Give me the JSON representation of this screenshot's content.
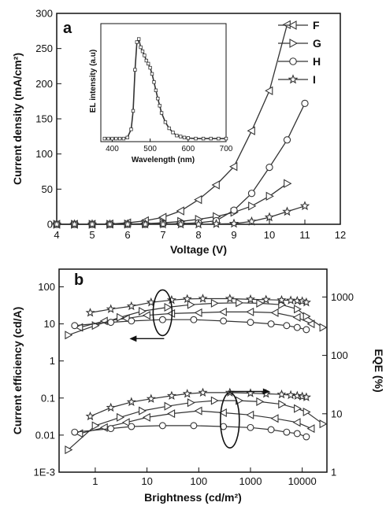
{
  "chart_data": [
    {
      "panel": "a",
      "type": "line",
      "xlabel": "Voltage (V)",
      "ylabel": "Current density (mA/cm²)",
      "xlim": [
        4,
        12
      ],
      "ylim": [
        0,
        300
      ],
      "xticks": [
        "4",
        "5",
        "6",
        "7",
        "8",
        "9",
        "10",
        "11",
        "12"
      ],
      "yticks": [
        "0",
        "50",
        "100",
        "150",
        "200",
        "250",
        "300"
      ],
      "legend_position": "top-right",
      "series": [
        {
          "name": "F",
          "marker": "triangle-left",
          "x": [
            4,
            4.5,
            5,
            5.5,
            6,
            6.5,
            7,
            7.5,
            8,
            8.5,
            9,
            9.5,
            10,
            10.5
          ],
          "y": [
            0,
            0,
            0,
            0.5,
            2,
            5,
            10,
            19,
            35,
            56,
            82,
            133,
            190,
            284
          ]
        },
        {
          "name": "G",
          "marker": "triangle-right",
          "x": [
            4,
            4.5,
            5,
            5.5,
            6,
            6.5,
            7,
            7.5,
            8,
            8.5,
            9,
            9.5,
            10,
            10.5
          ],
          "y": [
            0,
            0,
            0,
            0,
            0.5,
            1,
            2,
            4,
            7,
            11,
            17,
            26,
            40,
            58
          ]
        },
        {
          "name": "H",
          "marker": "circle",
          "x": [
            4,
            4.5,
            5,
            5.5,
            6,
            6.5,
            7,
            7.5,
            8,
            8.5,
            9,
            9.5,
            10,
            10.5,
            11
          ],
          "y": [
            0,
            0,
            0,
            0,
            0,
            0,
            0.5,
            1,
            2,
            5,
            20,
            44,
            81,
            120,
            172
          ]
        },
        {
          "name": "I",
          "marker": "star",
          "x": [
            4,
            4.5,
            5,
            5.5,
            6,
            6.5,
            7,
            7.5,
            8,
            8.5,
            9,
            9.5,
            10,
            10.5,
            11
          ],
          "y": [
            0,
            0,
            0,
            0,
            0,
            0,
            0,
            0,
            0,
            0.5,
            1,
            4,
            10,
            18,
            26
          ]
        }
      ]
    },
    {
      "panel": "a-inset",
      "type": "line",
      "xlabel": "Wavelength (nm)",
      "ylabel": "EL intensity (a.u)",
      "xlim": [
        370,
        700
      ],
      "ylim": [
        0,
        1.15
      ],
      "xticks": [
        "400",
        "500",
        "600",
        "700"
      ],
      "series": [
        {
          "x": [
            380,
            390,
            400,
            410,
            420,
            430,
            440,
            450,
            455,
            460,
            465,
            470,
            475,
            480,
            485,
            490,
            495,
            500,
            505,
            510,
            515,
            520,
            525,
            530,
            540,
            550,
            560,
            570,
            580,
            590,
            600,
            620,
            640,
            660,
            680,
            700
          ],
          "y": [
            0.03,
            0.03,
            0.03,
            0.03,
            0.03,
            0.03,
            0.04,
            0.12,
            0.3,
            0.7,
            0.97,
            1.0,
            0.92,
            0.88,
            0.84,
            0.79,
            0.76,
            0.72,
            0.66,
            0.58,
            0.5,
            0.42,
            0.35,
            0.28,
            0.19,
            0.13,
            0.09,
            0.06,
            0.05,
            0.04,
            0.035,
            0.03,
            0.03,
            0.03,
            0.03,
            0.03
          ]
        }
      ]
    },
    {
      "panel": "b",
      "type": "scatter",
      "xlabel": "Brightness (cd/m²)",
      "ylabel": "Current efficiency (cd/A)",
      "ylabel_right": "EQE (%)",
      "xscale": "log",
      "yscale": "log",
      "xlim": [
        0.2,
        30000
      ],
      "ylim": [
        0.001,
        300
      ],
      "right_ylim": [
        1,
        3000
      ],
      "xticks": [
        "1",
        "10",
        "100",
        "1000",
        "10000"
      ],
      "yticks": [
        "1E-3",
        "0.01",
        "0.1",
        "1",
        "10",
        "100"
      ],
      "right_yticks": [
        "1",
        "10",
        "100",
        "1000"
      ],
      "series": [
        {
          "name": "F",
          "marker": "triangle-left",
          "quantity": "current efficiency",
          "x": [
            0.5,
            1.5,
            4,
            10,
            30,
            100,
            300,
            1000,
            3000,
            8000,
            15000
          ],
          "y": [
            8,
            12,
            14,
            17,
            19,
            20,
            21,
            21,
            20,
            15,
            10
          ]
        },
        {
          "name": "G",
          "marker": "triangle-right",
          "quantity": "current efficiency",
          "x": [
            0.3,
            1,
            3,
            8,
            25,
            70,
            200,
            600,
            1500,
            4000,
            8000,
            12000,
            25000
          ],
          "y": [
            5,
            9,
            15,
            22,
            28,
            33,
            36,
            37,
            36,
            33,
            25,
            16,
            8
          ]
        },
        {
          "name": "H",
          "marker": "circle",
          "quantity": "current efficiency",
          "x": [
            0.4,
            2,
            5,
            20,
            80,
            300,
            1000,
            2500,
            5000,
            8000,
            12000
          ],
          "y": [
            9,
            11,
            12,
            13,
            13,
            12,
            11,
            10,
            9,
            8,
            7
          ]
        },
        {
          "name": "I",
          "marker": "star",
          "quantity": "current efficiency",
          "x": [
            0.8,
            2,
            5,
            12,
            30,
            60,
            120,
            400,
            1000,
            2000,
            4000,
            6000,
            8000,
            10000,
            12000
          ],
          "y": [
            20,
            25,
            30,
            38,
            44,
            47,
            48,
            48,
            46,
            45,
            44,
            43,
            42,
            41,
            38
          ]
        },
        {
          "name": "F",
          "marker": "triangle-left",
          "quantity": "EQE",
          "x": [
            0.5,
            1.5,
            4,
            10,
            30,
            100,
            300,
            1000,
            3000,
            8000,
            15000
          ],
          "y": [
            0.011,
            0.016,
            0.022,
            0.03,
            0.038,
            0.045,
            0.04,
            0.035,
            0.028,
            0.022,
            0.015
          ]
        },
        {
          "name": "G",
          "marker": "triangle-right",
          "quantity": "EQE",
          "x": [
            0.3,
            1,
            3,
            8,
            25,
            70,
            200,
            600,
            1500,
            4000,
            8000,
            12000,
            25000
          ],
          "y": [
            0.004,
            0.018,
            0.03,
            0.045,
            0.06,
            0.075,
            0.085,
            0.085,
            0.08,
            0.068,
            0.052,
            0.042,
            0.02
          ]
        },
        {
          "name": "H",
          "marker": "circle",
          "quantity": "EQE",
          "x": [
            0.4,
            2,
            5,
            20,
            80,
            300,
            1000,
            2500,
            5000,
            8000,
            12000
          ],
          "y": [
            0.012,
            0.015,
            0.017,
            0.018,
            0.018,
            0.017,
            0.016,
            0.014,
            0.012,
            0.011,
            0.009
          ]
        },
        {
          "name": "I",
          "marker": "star",
          "quantity": "EQE",
          "x": [
            0.8,
            2,
            5,
            12,
            30,
            60,
            120,
            400,
            1000,
            2000,
            4000,
            6000,
            8000,
            10000,
            12000
          ],
          "y": [
            0.032,
            0.055,
            0.078,
            0.095,
            0.115,
            0.13,
            0.14,
            0.14,
            0.135,
            0.13,
            0.125,
            0.12,
            0.115,
            0.11,
            0.105
          ]
        }
      ],
      "annotations": [
        {
          "type": "ellipse",
          "group": "current efficiency",
          "arrow_direction": "left"
        },
        {
          "type": "ellipse",
          "group": "EQE",
          "arrow_direction": "right"
        }
      ]
    }
  ],
  "panel_labels": {
    "a": "a",
    "b": "b"
  },
  "colors": {
    "line": "#333333",
    "axis": "#111111",
    "background": "#ffffff"
  }
}
